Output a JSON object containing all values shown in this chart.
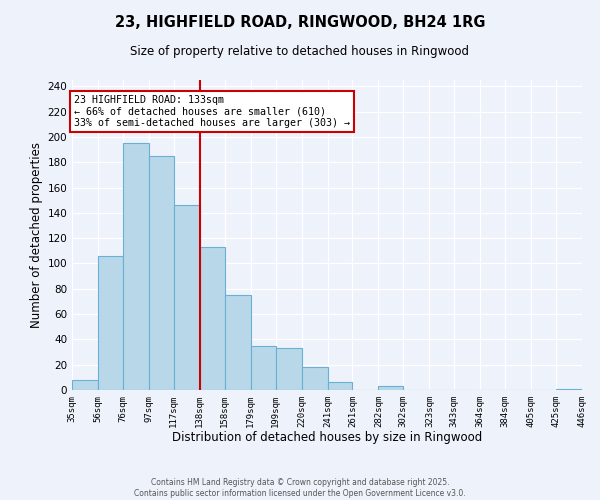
{
  "title": "23, HIGHFIELD ROAD, RINGWOOD, BH24 1RG",
  "subtitle": "Size of property relative to detached houses in Ringwood",
  "xlabel": "Distribution of detached houses by size in Ringwood",
  "ylabel": "Number of detached properties",
  "bar_color": "#b8d8ea",
  "bar_edge_color": "#6aafd4",
  "bin_edges": [
    35,
    56,
    76,
    97,
    117,
    138,
    158,
    179,
    199,
    220,
    241,
    261,
    282,
    302,
    323,
    343,
    364,
    384,
    405,
    425,
    446
  ],
  "bin_labels": [
    "35sqm",
    "56sqm",
    "76sqm",
    "97sqm",
    "117sqm",
    "138sqm",
    "158sqm",
    "179sqm",
    "199sqm",
    "220sqm",
    "241sqm",
    "261sqm",
    "282sqm",
    "302sqm",
    "323sqm",
    "343sqm",
    "364sqm",
    "384sqm",
    "405sqm",
    "425sqm",
    "446sqm"
  ],
  "counts": [
    8,
    106,
    195,
    185,
    146,
    113,
    75,
    35,
    33,
    18,
    6,
    0,
    3,
    0,
    0,
    0,
    0,
    0,
    0,
    1
  ],
  "vline_x": 138,
  "annotation_title": "23 HIGHFIELD ROAD: 133sqm",
  "annotation_line1": "← 66% of detached houses are smaller (610)",
  "annotation_line2": "33% of semi-detached houses are larger (303) →",
  "vline_color": "#cc0000",
  "annotation_box_color": "#ffffff",
  "annotation_box_edge": "#cc0000",
  "ylim": [
    0,
    245
  ],
  "yticks": [
    0,
    20,
    40,
    60,
    80,
    100,
    120,
    140,
    160,
    180,
    200,
    220,
    240
  ],
  "background_color": "#eef2fb",
  "footer_line1": "Contains HM Land Registry data © Crown copyright and database right 2025.",
  "footer_line2": "Contains public sector information licensed under the Open Government Licence v3.0."
}
